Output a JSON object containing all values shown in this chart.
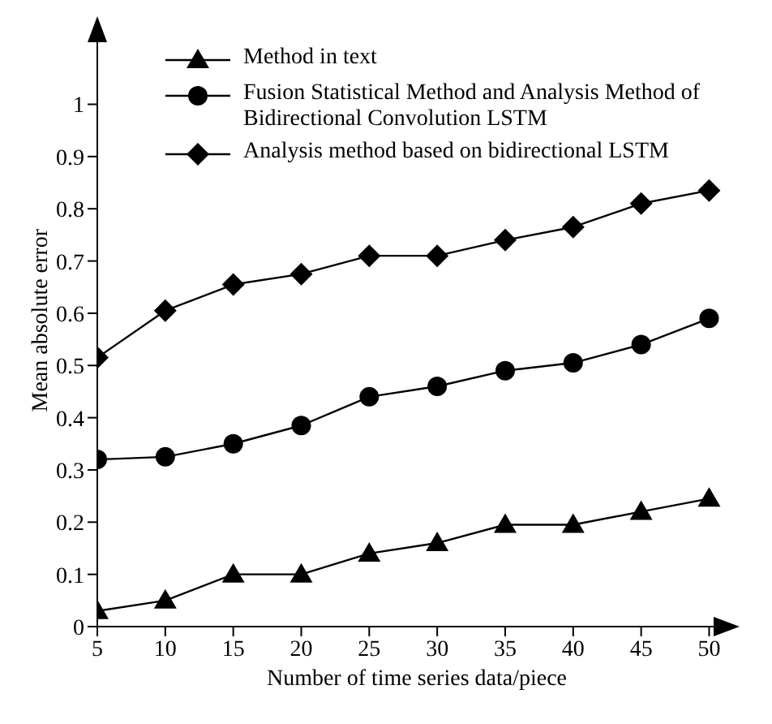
{
  "chart_data": {
    "type": "line",
    "xlabel": "Number of time series data/piece",
    "ylabel": "Mean absolute error",
    "x": [
      5,
      10,
      15,
      20,
      25,
      30,
      35,
      40,
      45,
      50
    ],
    "xlim": [
      5,
      52
    ],
    "xticks": [
      5,
      10,
      15,
      20,
      25,
      30,
      35,
      40,
      45,
      50
    ],
    "ylim": [
      0,
      1.15
    ],
    "yticks": [
      0,
      0.1,
      0.2,
      0.3,
      0.4,
      0.5,
      0.6,
      0.7,
      0.8,
      0.9,
      1
    ],
    "grid": false,
    "legend": "top",
    "line_style": "solid",
    "series": [
      {
        "name": "Method in text",
        "color": "#000000",
        "marker": "triangle",
        "values": [
          0.03,
          0.05,
          0.1,
          0.1,
          0.14,
          0.16,
          0.195,
          0.195,
          0.22,
          0.245
        ]
      },
      {
        "name": "Fusion Statistical Method and Analysis Method of Bidirectional Convolution LSTM",
        "color": "#000000",
        "marker": "circle",
        "values": [
          0.32,
          0.325,
          0.35,
          0.385,
          0.44,
          0.46,
          0.49,
          0.505,
          0.54,
          0.59
        ]
      },
      {
        "name": "Analysis method based on bidirectional LSTM",
        "color": "#000000",
        "marker": "diamond",
        "values": [
          0.515,
          0.605,
          0.655,
          0.675,
          0.71,
          0.71,
          0.74,
          0.765,
          0.81,
          0.835
        ]
      }
    ]
  }
}
